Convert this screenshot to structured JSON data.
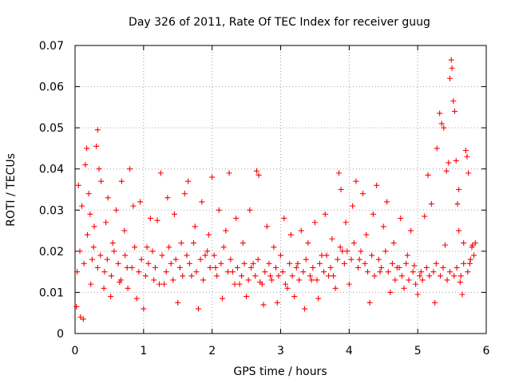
{
  "chart_data": {
    "type": "scatter",
    "title": "Day 326 of 2011, Rate Of TEC Index for receiver guug",
    "xlabel": "GPS time / hours",
    "ylabel": "ROTI / TECUs",
    "xlim": [
      0,
      6
    ],
    "ylim": [
      0,
      0.07
    ],
    "x_ticks": [
      "0",
      "1",
      "2",
      "3",
      "4",
      "5",
      "6"
    ],
    "y_ticks": [
      "0",
      "0.01",
      "0.02",
      "0.03",
      "0.04",
      "0.05",
      "0.06",
      "0.07"
    ],
    "grid": true,
    "marker": "+",
    "series": [
      {
        "name": "ROTI",
        "color": "#ff0000",
        "points": [
          [
            0.02,
            0.0065
          ],
          [
            0.05,
            0.036
          ],
          [
            0.08,
            0.004
          ],
          [
            0.1,
            0.031
          ],
          [
            0.12,
            0.0035
          ],
          [
            0.15,
            0.041
          ],
          [
            0.17,
            0.045
          ],
          [
            0.2,
            0.034
          ],
          [
            0.22,
            0.029
          ],
          [
            0.25,
            0.018
          ],
          [
            0.28,
            0.026
          ],
          [
            0.31,
            0.0455
          ],
          [
            0.33,
            0.0495
          ],
          [
            0.35,
            0.04
          ],
          [
            0.38,
            0.037
          ],
          [
            0.42,
            0.011
          ],
          [
            0.45,
            0.027
          ],
          [
            0.48,
            0.033
          ],
          [
            0.52,
            0.009
          ],
          [
            0.55,
            0.022
          ],
          [
            0.6,
            0.03
          ],
          [
            0.65,
            0.0125
          ],
          [
            0.68,
            0.037
          ],
          [
            0.72,
            0.025
          ],
          [
            0.76,
            0.016
          ],
          [
            0.8,
            0.04
          ],
          [
            0.85,
            0.031
          ],
          [
            0.9,
            0.0085
          ],
          [
            0.95,
            0.032
          ],
          [
            1.0,
            0.006
          ],
          [
            1.05,
            0.021
          ],
          [
            1.1,
            0.028
          ],
          [
            1.15,
            0.013
          ],
          [
            1.2,
            0.0275
          ],
          [
            1.25,
            0.039
          ],
          [
            1.3,
            0.012
          ],
          [
            1.35,
            0.033
          ],
          [
            1.4,
            0.017
          ],
          [
            1.45,
            0.029
          ],
          [
            1.5,
            0.0075
          ],
          [
            1.55,
            0.022
          ],
          [
            1.6,
            0.034
          ],
          [
            1.65,
            0.037
          ],
          [
            1.7,
            0.014
          ],
          [
            1.75,
            0.026
          ],
          [
            1.8,
            0.006
          ],
          [
            1.85,
            0.032
          ],
          [
            1.9,
            0.019
          ],
          [
            1.95,
            0.024
          ],
          [
            2.0,
            0.038
          ],
          [
            2.05,
            0.016
          ],
          [
            2.1,
            0.03
          ],
          [
            2.15,
            0.0085
          ],
          [
            2.2,
            0.025
          ],
          [
            2.25,
            0.039
          ],
          [
            2.3,
            0.015
          ],
          [
            2.35,
            0.028
          ],
          [
            2.4,
            0.012
          ],
          [
            2.45,
            0.022
          ],
          [
            2.5,
            0.009
          ],
          [
            2.55,
            0.03
          ],
          [
            2.6,
            0.017
          ],
          [
            2.65,
            0.0395
          ],
          [
            2.68,
            0.0385
          ],
          [
            2.7,
            0.0125
          ],
          [
            2.75,
            0.007
          ],
          [
            2.8,
            0.026
          ],
          [
            2.85,
            0.014
          ],
          [
            2.9,
            0.021
          ],
          [
            2.95,
            0.0075
          ],
          [
            3.0,
            0.019
          ],
          [
            3.05,
            0.028
          ],
          [
            3.1,
            0.011
          ],
          [
            3.15,
            0.024
          ],
          [
            3.2,
            0.009
          ],
          [
            3.25,
            0.017
          ],
          [
            3.3,
            0.025
          ],
          [
            3.35,
            0.006
          ],
          [
            3.4,
            0.022
          ],
          [
            3.45,
            0.013
          ],
          [
            3.5,
            0.027
          ],
          [
            3.55,
            0.0085
          ],
          [
            3.6,
            0.019
          ],
          [
            3.65,
            0.029
          ],
          [
            3.7,
            0.014
          ],
          [
            3.75,
            0.023
          ],
          [
            3.8,
            0.011
          ],
          [
            3.85,
            0.039
          ],
          [
            3.88,
            0.035
          ],
          [
            3.9,
            0.02
          ],
          [
            3.95,
            0.027
          ],
          [
            4.0,
            0.012
          ],
          [
            4.05,
            0.031
          ],
          [
            4.1,
            0.037
          ],
          [
            4.15,
            0.018
          ],
          [
            4.2,
            0.034
          ],
          [
            4.25,
            0.024
          ],
          [
            4.3,
            0.0075
          ],
          [
            4.35,
            0.029
          ],
          [
            4.4,
            0.036
          ],
          [
            4.45,
            0.015
          ],
          [
            4.5,
            0.026
          ],
          [
            4.55,
            0.032
          ],
          [
            4.6,
            0.01
          ],
          [
            4.65,
            0.022
          ],
          [
            4.7,
            0.016
          ],
          [
            4.75,
            0.028
          ],
          [
            4.8,
            0.011
          ],
          [
            4.85,
            0.019
          ],
          [
            4.9,
            0.025
          ],
          [
            4.95,
            0.0165
          ],
          [
            5.0,
            0.0095
          ],
          [
            5.05,
            0.015
          ],
          [
            5.1,
            0.0285
          ],
          [
            5.15,
            0.0385
          ],
          [
            5.2,
            0.0315
          ],
          [
            5.25,
            0.0075
          ],
          [
            5.28,
            0.045
          ],
          [
            5.32,
            0.0535
          ],
          [
            5.35,
            0.051
          ],
          [
            5.38,
            0.05
          ],
          [
            5.4,
            0.0215
          ],
          [
            5.42,
            0.0395
          ],
          [
            5.45,
            0.0415
          ],
          [
            5.47,
            0.062
          ],
          [
            5.49,
            0.0665
          ],
          [
            5.5,
            0.0645
          ],
          [
            5.52,
            0.0565
          ],
          [
            5.54,
            0.054
          ],
          [
            5.56,
            0.042
          ],
          [
            5.58,
            0.0315
          ],
          [
            5.6,
            0.025
          ],
          [
            5.62,
            0.0125
          ],
          [
            5.65,
            0.0095
          ],
          [
            5.67,
            0.022
          ],
          [
            5.7,
            0.0445
          ],
          [
            5.72,
            0.043
          ],
          [
            5.74,
            0.039
          ],
          [
            5.76,
            0.017
          ],
          [
            5.8,
            0.0215
          ],
          [
            0.03,
            0.015
          ],
          [
            0.07,
            0.02
          ],
          [
            0.13,
            0.017
          ],
          [
            0.18,
            0.024
          ],
          [
            0.23,
            0.012
          ],
          [
            0.27,
            0.021
          ],
          [
            0.33,
            0.016
          ],
          [
            0.37,
            0.019
          ],
          [
            0.43,
            0.015
          ],
          [
            0.47,
            0.018
          ],
          [
            0.53,
            0.014
          ],
          [
            0.57,
            0.02
          ],
          [
            0.63,
            0.017
          ],
          [
            0.67,
            0.013
          ],
          [
            0.73,
            0.019
          ],
          [
            0.77,
            0.011
          ],
          [
            0.83,
            0.016
          ],
          [
            0.87,
            0.021
          ],
          [
            0.93,
            0.015
          ],
          [
            0.97,
            0.018
          ],
          [
            1.03,
            0.014
          ],
          [
            1.07,
            0.017
          ],
          [
            1.13,
            0.02
          ],
          [
            1.17,
            0.016
          ],
          [
            1.23,
            0.012
          ],
          [
            1.27,
            0.019
          ],
          [
            1.33,
            0.015
          ],
          [
            1.37,
            0.021
          ],
          [
            1.43,
            0.013
          ],
          [
            1.47,
            0.018
          ],
          [
            1.53,
            0.016
          ],
          [
            1.57,
            0.014
          ],
          [
            1.63,
            0.019
          ],
          [
            1.67,
            0.017
          ],
          [
            1.73,
            0.022
          ],
          [
            1.77,
            0.015
          ],
          [
            1.83,
            0.018
          ],
          [
            1.87,
            0.013
          ],
          [
            1.93,
            0.02
          ],
          [
            1.97,
            0.016
          ],
          [
            2.03,
            0.019
          ],
          [
            2.07,
            0.014
          ],
          [
            2.13,
            0.017
          ],
          [
            2.17,
            0.021
          ],
          [
            2.23,
            0.015
          ],
          [
            2.27,
            0.018
          ],
          [
            2.33,
            0.012
          ],
          [
            2.37,
            0.016
          ],
          [
            2.43,
            0.014
          ],
          [
            2.47,
            0.017
          ],
          [
            2.53,
            0.013
          ],
          [
            2.57,
            0.016
          ],
          [
            2.63,
            0.014
          ],
          [
            2.67,
            0.018
          ],
          [
            2.73,
            0.012
          ],
          [
            2.77,
            0.015
          ],
          [
            2.83,
            0.017
          ],
          [
            2.87,
            0.013
          ],
          [
            2.93,
            0.016
          ],
          [
            2.97,
            0.014
          ],
          [
            3.03,
            0.015
          ],
          [
            3.07,
            0.012
          ],
          [
            3.13,
            0.017
          ],
          [
            3.17,
            0.014
          ],
          [
            3.23,
            0.016
          ],
          [
            3.27,
            0.013
          ],
          [
            3.33,
            0.015
          ],
          [
            3.37,
            0.018
          ],
          [
            3.43,
            0.014
          ],
          [
            3.47,
            0.016
          ],
          [
            3.53,
            0.013
          ],
          [
            3.57,
            0.017
          ],
          [
            3.63,
            0.015
          ],
          [
            3.67,
            0.019
          ],
          [
            3.73,
            0.016
          ],
          [
            3.77,
            0.014
          ],
          [
            3.83,
            0.018
          ],
          [
            3.87,
            0.021
          ],
          [
            3.93,
            0.017
          ],
          [
            3.97,
            0.02
          ],
          [
            4.03,
            0.018
          ],
          [
            4.07,
            0.022
          ],
          [
            4.13,
            0.016
          ],
          [
            4.17,
            0.02
          ],
          [
            4.23,
            0.017
          ],
          [
            4.27,
            0.015
          ],
          [
            4.33,
            0.019
          ],
          [
            4.37,
            0.014
          ],
          [
            4.43,
            0.018
          ],
          [
            4.47,
            0.016
          ],
          [
            4.53,
            0.02
          ],
          [
            4.57,
            0.015
          ],
          [
            4.63,
            0.017
          ],
          [
            4.67,
            0.013
          ],
          [
            4.73,
            0.016
          ],
          [
            4.77,
            0.014
          ],
          [
            4.83,
            0.017
          ],
          [
            4.87,
            0.013
          ],
          [
            4.93,
            0.015
          ],
          [
            4.97,
            0.012
          ],
          [
            5.03,
            0.014
          ],
          [
            5.07,
            0.013
          ],
          [
            5.13,
            0.016
          ],
          [
            5.17,
            0.014
          ],
          [
            5.23,
            0.015
          ],
          [
            5.27,
            0.017
          ],
          [
            5.33,
            0.014
          ],
          [
            5.37,
            0.016
          ],
          [
            5.43,
            0.013
          ],
          [
            5.47,
            0.015
          ],
          [
            5.53,
            0.014
          ],
          [
            5.57,
            0.016
          ],
          [
            5.63,
            0.014
          ],
          [
            5.67,
            0.017
          ],
          [
            5.73,
            0.015
          ],
          [
            5.77,
            0.018
          ],
          [
            5.79,
            0.021
          ],
          [
            5.82,
            0.019
          ],
          [
            5.84,
            0.022
          ],
          [
            5.6,
            0.035
          ]
        ]
      }
    ]
  }
}
